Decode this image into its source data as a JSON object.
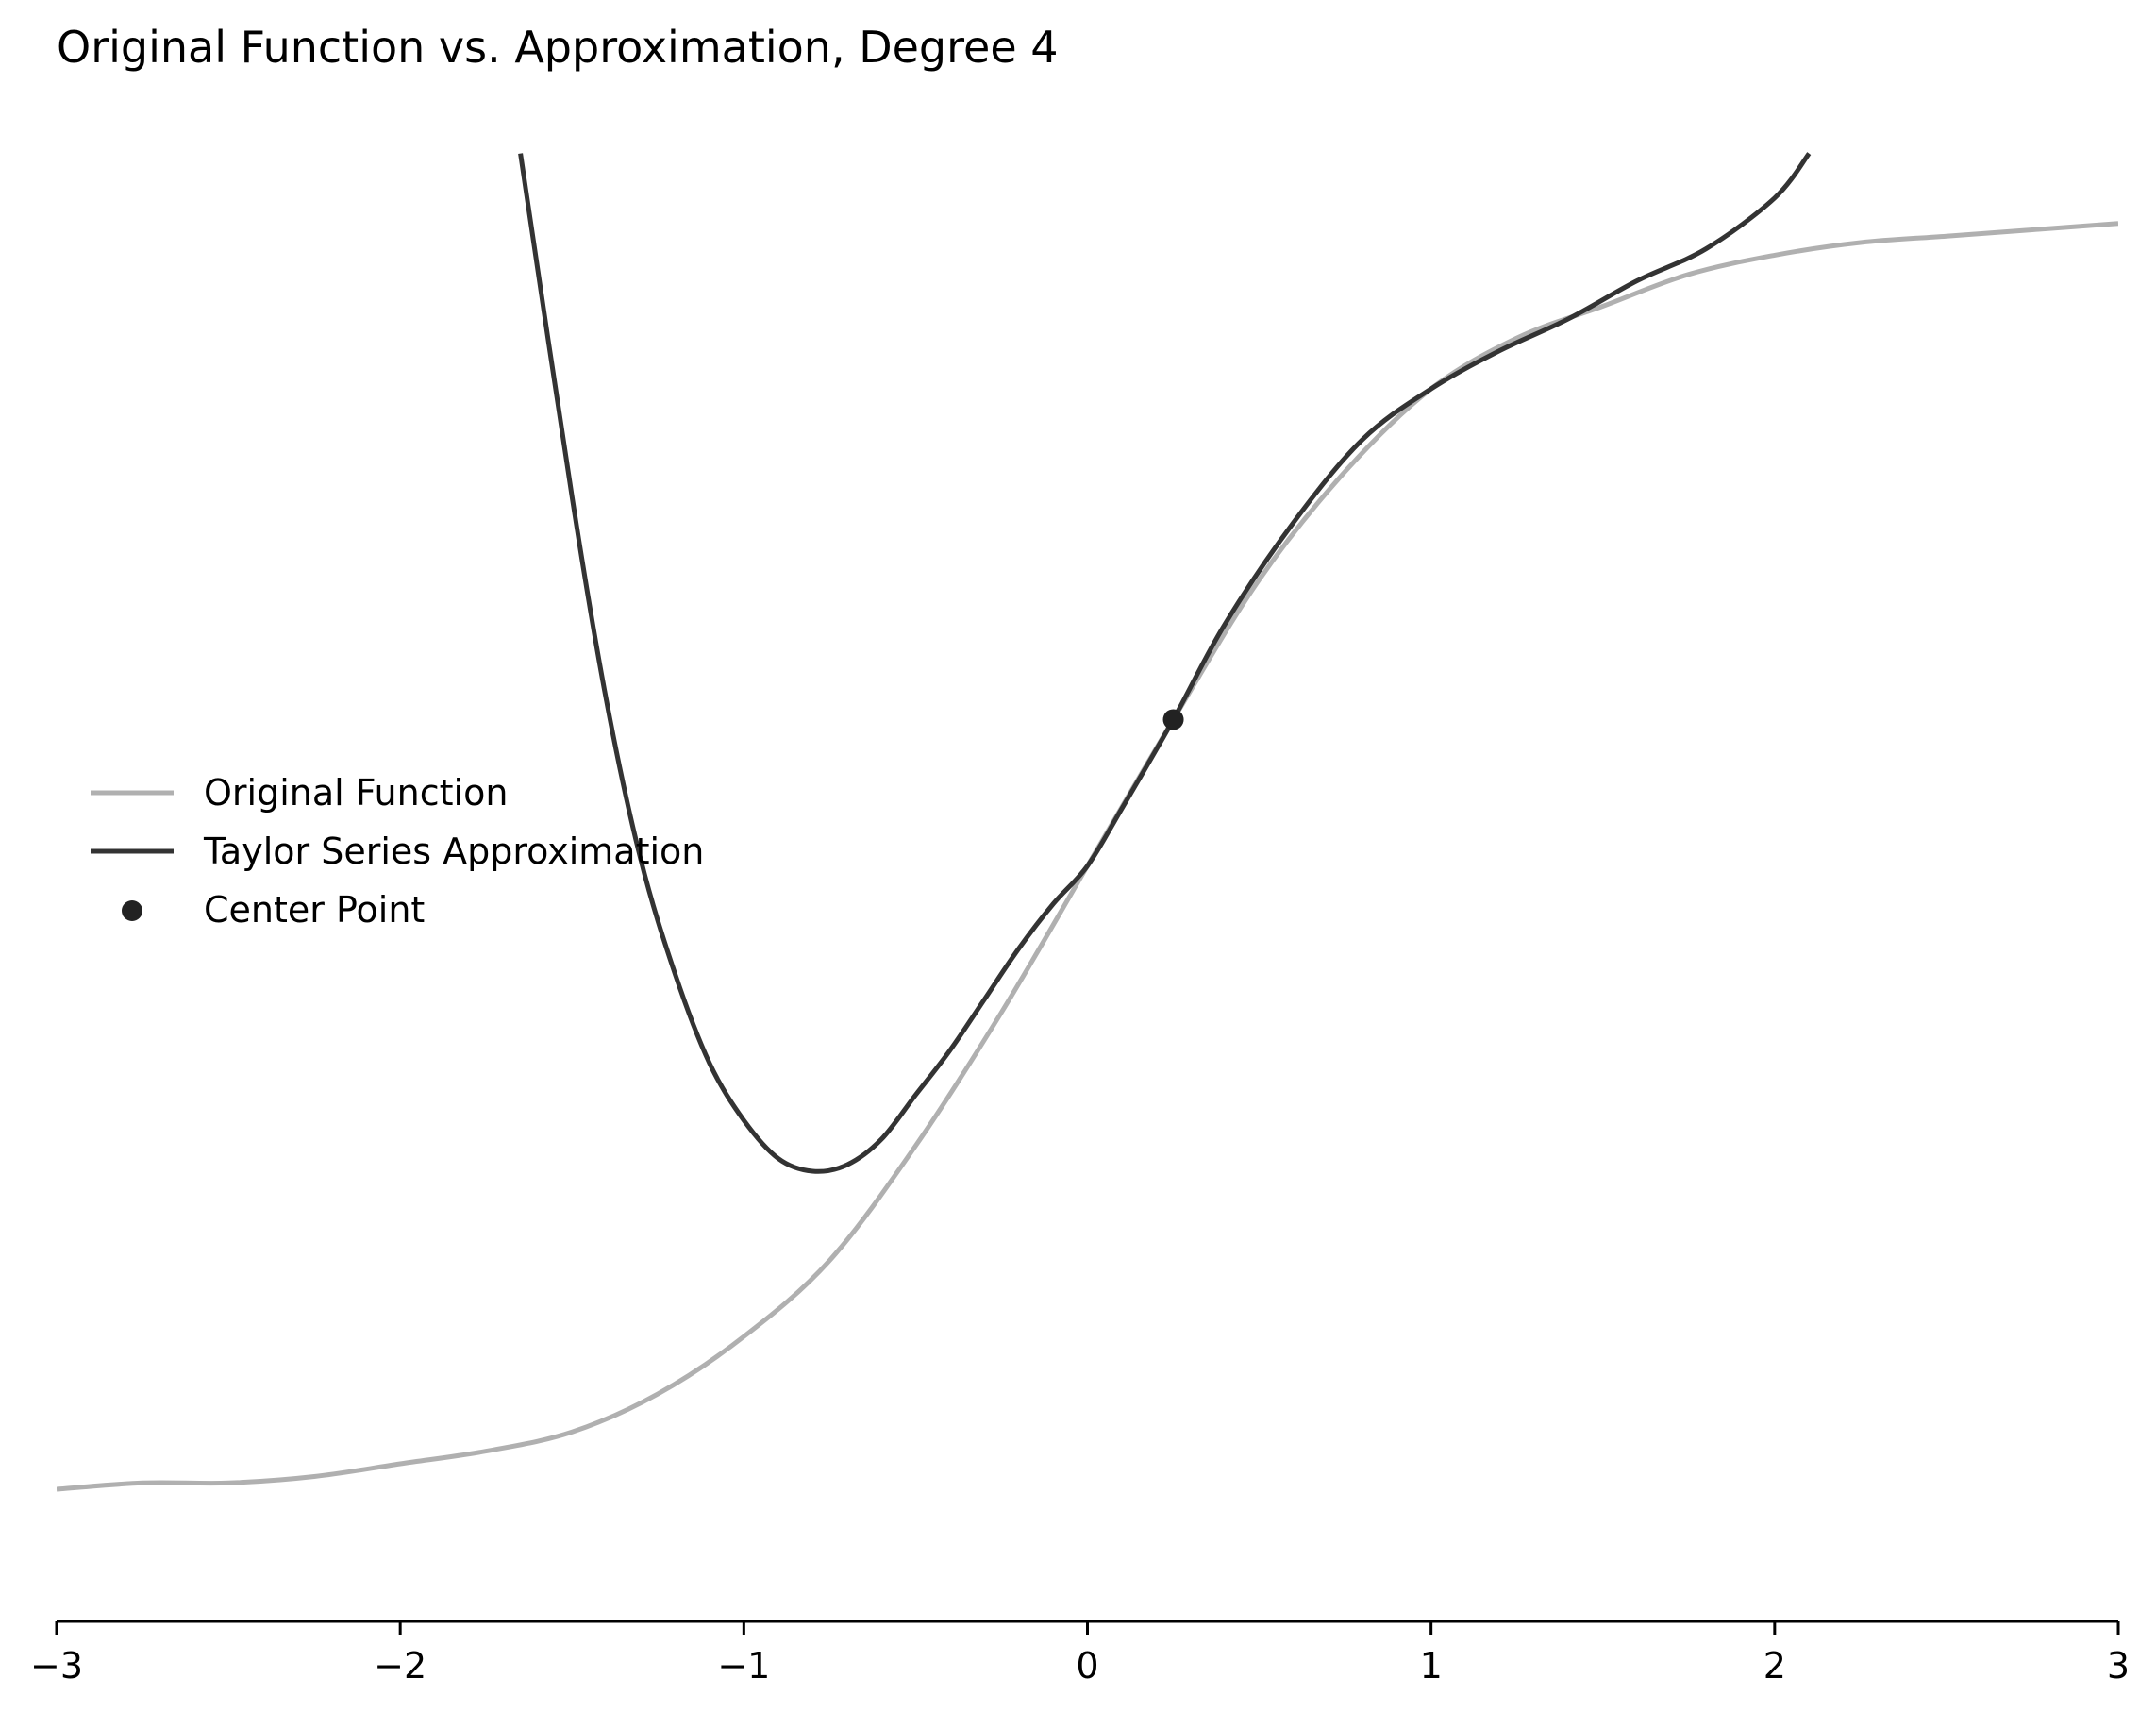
{
  "chart_data": {
    "type": "line",
    "title": "Original Function vs. Approximation, Degree 4",
    "xlabel": "",
    "ylabel": "",
    "xlim": [
      -3,
      3
    ],
    "ylim": [
      -1.1,
      1.1
    ],
    "x_ticks": [
      -3,
      -2,
      -1,
      0,
      1,
      2,
      3
    ],
    "x_tick_labels": [
      "−3",
      "−2",
      "−1",
      "0",
      "1",
      "2",
      "3"
    ],
    "y_axis_visible": false,
    "grid": false,
    "legend_position": "center-left",
    "series": [
      {
        "name": "Original Function",
        "color": "#b0b0b0",
        "x": [
          -3.0,
          -2.75,
          -2.5,
          -2.25,
          -2.0,
          -1.75,
          -1.5,
          -1.25,
          -1.0,
          -0.75,
          -0.5,
          -0.25,
          0.0,
          0.25,
          0.5,
          0.75,
          1.0,
          1.25,
          1.5,
          1.75,
          2.0,
          2.25,
          2.5,
          2.75,
          3.0
        ],
        "y": [
          -1.0,
          -0.99,
          -0.99,
          -0.98,
          -0.96,
          -0.94,
          -0.91,
          -0.85,
          -0.76,
          -0.64,
          -0.46,
          -0.25,
          -0.02,
          0.21,
          0.43,
          0.6,
          0.73,
          0.81,
          0.86,
          0.91,
          0.94,
          0.96,
          0.97,
          0.98,
          0.99
        ]
      },
      {
        "name": "Taylor Series Approximation",
        "color": "#333333",
        "x": [
          -1.65,
          -1.5,
          -1.4,
          -1.3,
          -1.2,
          -1.1,
          -1.0,
          -0.9,
          -0.8,
          -0.7,
          -0.6,
          -0.5,
          -0.4,
          -0.3,
          -0.2,
          -0.1,
          0.0,
          0.1,
          0.25,
          0.4,
          0.6,
          0.8,
          1.0,
          1.2,
          1.4,
          1.6,
          1.8,
          2.0,
          2.1
        ],
        "y": [
          1.1,
          0.56,
          0.24,
          -0.01,
          -0.19,
          -0.33,
          -0.42,
          -0.48,
          -0.5,
          -0.49,
          -0.45,
          -0.38,
          -0.31,
          -0.23,
          -0.15,
          -0.08,
          -0.02,
          0.07,
          0.21,
          0.36,
          0.52,
          0.65,
          0.73,
          0.79,
          0.84,
          0.9,
          0.95,
          1.03,
          1.1
        ]
      }
    ],
    "points": [
      {
        "name": "Center Point",
        "color": "#222222",
        "x": 0.25,
        "y": 0.21
      }
    ]
  }
}
